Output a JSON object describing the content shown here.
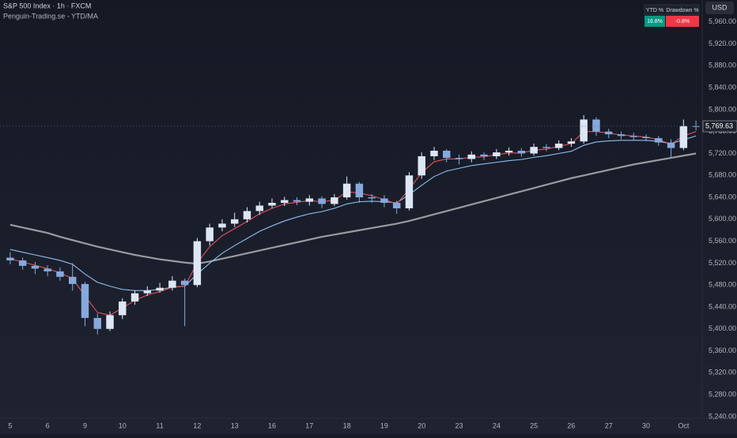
{
  "chart_data": {
    "type": "candlestick",
    "title": "S&P 500 Index · 1h · FXCM",
    "subtitle": "Penguin-Trading.se - YTD/MA",
    "currency": "USD",
    "categories": [
      "5",
      null,
      null,
      "6",
      null,
      null,
      "9",
      null,
      null,
      "10",
      null,
      null,
      "11",
      null,
      null,
      "12",
      null,
      null,
      "13",
      null,
      null,
      "16",
      null,
      null,
      "17",
      null,
      null,
      "18",
      null,
      null,
      "19",
      null,
      null,
      "20",
      null,
      null,
      "23",
      null,
      null,
      "24",
      null,
      null,
      "25",
      null,
      null,
      "26",
      null,
      null,
      "27",
      null,
      null,
      "30",
      null,
      null,
      "Oct",
      null
    ],
    "open": [
      5530,
      5525,
      5515,
      5510,
      5505,
      5495,
      5482,
      5420,
      5400,
      5425,
      5450,
      5465,
      5470,
      5475,
      5488,
      5480,
      5560,
      5585,
      5592,
      5600,
      5615,
      5625,
      5630,
      5635,
      5632,
      5638,
      5628,
      5640,
      5665,
      5640,
      5638,
      5630,
      5620,
      5680,
      5715,
      5725,
      5712,
      5710,
      5718,
      5715,
      5722,
      5725,
      5720,
      5732,
      5730,
      5738,
      5742,
      5782,
      5760,
      5755,
      5752,
      5750,
      5748,
      5740,
      5730,
      5770
    ],
    "high": [
      5540,
      5530,
      5522,
      5516,
      5512,
      5520,
      5486,
      5428,
      5432,
      5456,
      5470,
      5478,
      5484,
      5496,
      5492,
      5566,
      5592,
      5600,
      5612,
      5622,
      5632,
      5638,
      5641,
      5640,
      5644,
      5642,
      5646,
      5678,
      5668,
      5646,
      5644,
      5634,
      5686,
      5722,
      5732,
      5728,
      5718,
      5724,
      5722,
      5728,
      5731,
      5730,
      5738,
      5737,
      5744,
      5748,
      5790,
      5786,
      5765,
      5760,
      5758,
      5755,
      5752,
      5746,
      5782,
      5780
    ],
    "low": [
      5518,
      5508,
      5500,
      5496,
      5488,
      5470,
      5405,
      5390,
      5396,
      5418,
      5444,
      5460,
      5466,
      5470,
      5405,
      5476,
      5552,
      5578,
      5586,
      5594,
      5608,
      5620,
      5624,
      5626,
      5625,
      5620,
      5624,
      5636,
      5630,
      5630,
      5622,
      5610,
      5616,
      5674,
      5708,
      5704,
      5700,
      5704,
      5708,
      5710,
      5716,
      5714,
      5716,
      5724,
      5726,
      5732,
      5738,
      5752,
      5748,
      5746,
      5744,
      5742,
      5734,
      5712,
      5726,
      5762
    ],
    "close": [
      5525,
      5515,
      5510,
      5505,
      5495,
      5482,
      5420,
      5400,
      5425,
      5450,
      5465,
      5470,
      5475,
      5488,
      5480,
      5560,
      5585,
      5592,
      5600,
      5615,
      5625,
      5630,
      5635,
      5632,
      5638,
      5628,
      5640,
      5665,
      5640,
      5638,
      5630,
      5620,
      5680,
      5715,
      5725,
      5712,
      5710,
      5718,
      5715,
      5722,
      5725,
      5720,
      5732,
      5730,
      5738,
      5742,
      5782,
      5760,
      5755,
      5752,
      5750,
      5748,
      5740,
      5730,
      5770,
      5769.63
    ],
    "up_color": "#dde6f5",
    "down_color": "#86a9dc",
    "series": [
      {
        "color": "#9a9aa0",
        "values": [
          5590,
          5585,
          5580,
          5575,
          5568,
          5562,
          5556,
          5550,
          5545,
          5540,
          5535,
          5531,
          5527,
          5524,
          5521,
          5519,
          5523,
          5528,
          5533,
          5538,
          5543,
          5548,
          5553,
          5558,
          5563,
          5568,
          5572,
          5576,
          5580,
          5584,
          5588,
          5592,
          5597,
          5603,
          5609,
          5615,
          5621,
          5627,
          5633,
          5639,
          5645,
          5651,
          5657,
          5663,
          5669,
          5675,
          5680,
          5685,
          5690,
          5695,
          5700,
          5704,
          5708,
          5712,
          5716,
          5720
        ]
      },
      {
        "color": "#8fbdf0",
        "values": [
          5545,
          5540,
          5535,
          5530,
          5525,
          5518,
          5500,
          5485,
          5478,
          5472,
          5470,
          5470,
          5472,
          5476,
          5478,
          5500,
          5520,
          5538,
          5552,
          5565,
          5578,
          5588,
          5597,
          5604,
          5610,
          5614,
          5620,
          5628,
          5632,
          5633,
          5632,
          5630,
          5645,
          5662,
          5678,
          5688,
          5693,
          5698,
          5701,
          5704,
          5707,
          5709,
          5713,
          5716,
          5720,
          5724,
          5735,
          5741,
          5743,
          5744,
          5744,
          5744,
          5742,
          5738,
          5745,
          5752
        ]
      },
      {
        "color": "#e0535a",
        "values": [
          5528,
          5522,
          5516,
          5510,
          5502,
          5492,
          5460,
          5430,
          5425,
          5438,
          5452,
          5462,
          5468,
          5476,
          5478,
          5520,
          5550,
          5570,
          5583,
          5596,
          5610,
          5620,
          5628,
          5631,
          5634,
          5632,
          5635,
          5650,
          5648,
          5643,
          5636,
          5628,
          5655,
          5685,
          5705,
          5710,
          5710,
          5713,
          5714,
          5718,
          5721,
          5721,
          5726,
          5728,
          5733,
          5738,
          5760,
          5760,
          5757,
          5754,
          5752,
          5750,
          5745,
          5737,
          5752,
          5760
        ]
      }
    ],
    "last_price": {
      "value": 5769.63,
      "label": "5,769.63"
    },
    "ylim": [
      5237,
      6000
    ],
    "yticks": [
      {
        "value": 5240,
        "label": "5,240.00"
      },
      {
        "value": 5280,
        "label": "5,280.00"
      },
      {
        "value": 5320,
        "label": "5,320.00"
      },
      {
        "value": 5360,
        "label": "5,360.00"
      },
      {
        "value": 5400,
        "label": "5,400.00"
      },
      {
        "value": 5440,
        "label": "5,440.00"
      },
      {
        "value": 5480,
        "label": "5,480.00"
      },
      {
        "value": 5520,
        "label": "5,520.00"
      },
      {
        "value": 5560,
        "label": "5,560.00"
      },
      {
        "value": 5600,
        "label": "5,600.00"
      },
      {
        "value": 5640,
        "label": "5,640.00"
      },
      {
        "value": 5680,
        "label": "5,680.00"
      },
      {
        "value": 5720,
        "label": "5,720.00"
      },
      {
        "value": 5760,
        "label": "5,760.00"
      },
      {
        "value": 5800,
        "label": "5,800.00"
      },
      {
        "value": 5840,
        "label": "5,840.00"
      },
      {
        "value": 5880,
        "label": "5,880.00"
      },
      {
        "value": 5920,
        "label": "5,920.00"
      },
      {
        "value": 5960,
        "label": "5,960.00"
      }
    ],
    "grid": false,
    "table": {
      "headers": [
        "YTD %",
        "Drawdown %"
      ],
      "values": [
        {
          "value": 16.8,
          "label": "16.8%"
        },
        {
          "value": -0.8,
          "label": "-0.8%"
        }
      ]
    }
  }
}
